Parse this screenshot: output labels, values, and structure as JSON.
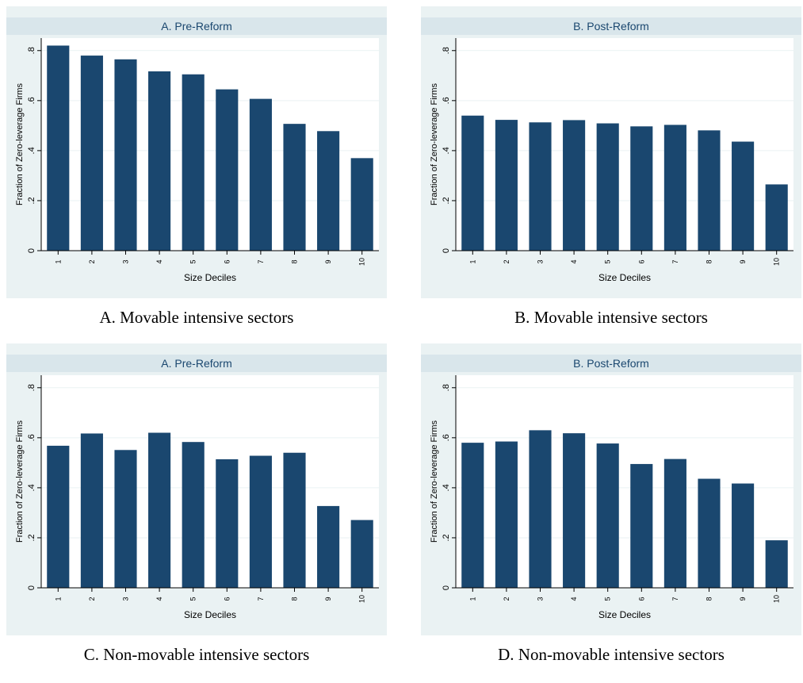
{
  "colors": {
    "bar": "#1a476f",
    "plot_region": "#eaf2f3",
    "plot_area": "#ffffff",
    "title_band": "#d9e6eb",
    "gridline": "#eaf2f3",
    "axis": "#000000"
  },
  "captions": [
    "A. Movable intensive sectors",
    "B. Movable intensive sectors",
    "C. Non-movable intensive sectors",
    "D. Non-movable intensive sectors"
  ],
  "chart_data": [
    {
      "type": "bar",
      "title": "A. Pre-Reform",
      "xlabel": "Size Deciles",
      "ylabel": "Fraction of Zero-leverage Firms",
      "categories": [
        "1",
        "2",
        "3",
        "4",
        "5",
        "6",
        "7",
        "8",
        "9",
        "10"
      ],
      "values": [
        0.82,
        0.78,
        0.765,
        0.717,
        0.705,
        0.645,
        0.607,
        0.507,
        0.478,
        0.37
      ],
      "ylim": [
        0,
        0.85
      ],
      "yticks": [
        0,
        0.2,
        0.4,
        0.6,
        0.8
      ],
      "ytick_labels": [
        "0",
        ".2",
        ".4",
        ".6",
        ".8"
      ],
      "grid": true
    },
    {
      "type": "bar",
      "title": "B. Post-Reform",
      "xlabel": "Size Deciles",
      "ylabel": "Fraction of Zero-leverage Firms",
      "categories": [
        "1",
        "2",
        "3",
        "4",
        "5",
        "6",
        "7",
        "8",
        "9",
        "10"
      ],
      "values": [
        0.54,
        0.523,
        0.513,
        0.522,
        0.509,
        0.497,
        0.503,
        0.481,
        0.436,
        0.265
      ],
      "ylim": [
        0,
        0.85
      ],
      "yticks": [
        0,
        0.2,
        0.4,
        0.6,
        0.8
      ],
      "ytick_labels": [
        "0",
        ".2",
        ".4",
        ".6",
        ".8"
      ],
      "grid": true
    },
    {
      "type": "bar",
      "title": "A. Pre-Reform",
      "xlabel": "Size Deciles",
      "ylabel": "Fraction of Zero-leverage Firms",
      "categories": [
        "1",
        "2",
        "3",
        "4",
        "5",
        "6",
        "7",
        "8",
        "9",
        "10"
      ],
      "values": [
        0.568,
        0.617,
        0.551,
        0.62,
        0.583,
        0.514,
        0.528,
        0.54,
        0.327,
        0.271
      ],
      "ylim": [
        0,
        0.85
      ],
      "yticks": [
        0,
        0.2,
        0.4,
        0.6,
        0.8
      ],
      "ytick_labels": [
        "0",
        ".2",
        ".4",
        ".6",
        ".8"
      ],
      "grid": true
    },
    {
      "type": "bar",
      "title": "B. Post-Reform",
      "xlabel": "Size Deciles",
      "ylabel": "Fraction of Zero-leverage Firms",
      "categories": [
        "1",
        "2",
        "3",
        "4",
        "5",
        "6",
        "7",
        "8",
        "9",
        "10"
      ],
      "values": [
        0.58,
        0.585,
        0.63,
        0.618,
        0.577,
        0.495,
        0.515,
        0.436,
        0.417,
        0.19
      ],
      "ylim": [
        0,
        0.85
      ],
      "yticks": [
        0,
        0.2,
        0.4,
        0.6,
        0.8
      ],
      "ytick_labels": [
        "0",
        ".2",
        ".4",
        ".6",
        ".8"
      ],
      "grid": true
    }
  ]
}
